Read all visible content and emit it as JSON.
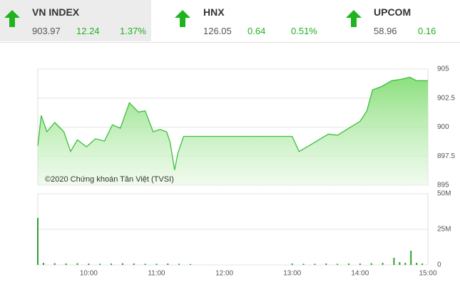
{
  "tickers": [
    {
      "name": "VN INDEX",
      "price": 903.97,
      "change": 12.24,
      "percent": "1.37%"
    },
    {
      "name": "HNX",
      "price": 126.05,
      "change": 0.64,
      "percent": "0.51%"
    },
    {
      "name": "UPCOM",
      "price": 58.96,
      "change": 0.16
    }
  ],
  "chart_data": [
    {
      "type": "area",
      "annotation": "©2020 Chứng khoán Tân Việt (TVSI)",
      "color": "#3cbf3c",
      "grid": true,
      "x": [
        "09:15",
        "09:18",
        "09:23",
        "09:30",
        "09:38",
        "09:44",
        "09:50",
        "09:58",
        "10:06",
        "10:14",
        "10:21",
        "10:28",
        "10:36",
        "10:44",
        "10:50",
        "10:57",
        "11:03",
        "11:09",
        "11:12",
        "11:16",
        "11:19",
        "11:24",
        "11:28",
        "11:30",
        "13:00",
        "13:06",
        "13:15",
        "13:25",
        "13:32",
        "13:40",
        "13:50",
        "14:00",
        "14:06",
        "14:11",
        "14:19",
        "14:28",
        "14:35",
        "14:44",
        "14:50",
        "15:00"
      ],
      "values": [
        898.4,
        901.0,
        899.6,
        900.4,
        899.6,
        897.9,
        898.9,
        898.3,
        899.0,
        898.8,
        900.2,
        899.9,
        902.1,
        901.3,
        901.4,
        899.6,
        899.8,
        899.6,
        898.7,
        896.3,
        897.8,
        899.2,
        899.2,
        899.2,
        899.2,
        897.9,
        898.4,
        899.0,
        899.4,
        899.3,
        899.9,
        900.5,
        901.4,
        903.2,
        903.5,
        904.0,
        904.1,
        904.3,
        904.0,
        904.0
      ],
      "xlim": [
        "09:15",
        "15:00"
      ],
      "ylim": [
        895,
        905
      ],
      "yticks": [
        895,
        897.5,
        900,
        902.5,
        905
      ]
    },
    {
      "type": "bar",
      "color": "#2e9e2e",
      "grid": true,
      "x": [
        "09:15",
        "09:20",
        "09:30",
        "09:40",
        "09:50",
        "10:00",
        "10:10",
        "10:20",
        "10:30",
        "10:40",
        "10:50",
        "11:00",
        "11:10",
        "11:20",
        "11:30",
        "13:00",
        "13:10",
        "13:20",
        "13:30",
        "13:40",
        "13:50",
        "14:00",
        "14:10",
        "14:20",
        "14:30",
        "14:35",
        "14:40",
        "14:45",
        "14:50",
        "14:55"
      ],
      "values": [
        33,
        1.5,
        1.2,
        1,
        1.2,
        1,
        0.8,
        1,
        1.2,
        1,
        0.8,
        0.8,
        1,
        0.8,
        0.6,
        1,
        0.8,
        0.8,
        1,
        0.8,
        1,
        1,
        1.2,
        1.5,
        5,
        2,
        1.5,
        10,
        1.5,
        1
      ],
      "xlim": [
        "09:15",
        "15:00"
      ],
      "xticks": [
        "10:00",
        "11:00",
        "12:00",
        "13:00",
        "14:00",
        "15:00"
      ],
      "ylim": [
        0,
        50
      ],
      "yticks": [
        0,
        {
          "value": 25,
          "label": "25M"
        },
        {
          "value": 50,
          "label": "50M"
        }
      ]
    }
  ]
}
